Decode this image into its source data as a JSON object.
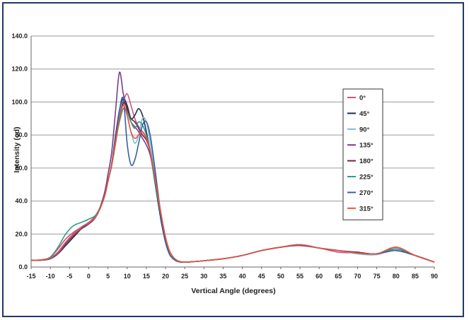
{
  "chart_data": {
    "type": "line",
    "title": "",
    "xlabel": "Vertical Angle (degrees)",
    "ylabel": "Intensity (cd)",
    "xlim": [
      -15,
      90
    ],
    "ylim": [
      0,
      140
    ],
    "x_ticks": [
      "-15",
      "-10",
      "-5",
      "0",
      "5",
      "10",
      "15",
      "20",
      "25",
      "30",
      "35",
      "40",
      "45",
      "50",
      "55",
      "60",
      "65",
      "70",
      "75",
      "80",
      "85",
      "90"
    ],
    "y_ticks": [
      "0.0",
      "20.0",
      "40.0",
      "60.0",
      "80.0",
      "100.0",
      "120.0",
      "140.0"
    ],
    "grid": "horizontal",
    "legend_position": "right",
    "x": [
      -15,
      -12,
      -10,
      -8,
      -6,
      -4,
      -2,
      0,
      2,
      4,
      5,
      6,
      7,
      8,
      9,
      10,
      11,
      12,
      13,
      14,
      15,
      16,
      17,
      18,
      19,
      20,
      21,
      22,
      23,
      24,
      25,
      27,
      30,
      35,
      40,
      45,
      50,
      55,
      60,
      65,
      70,
      75,
      80,
      85,
      90
    ],
    "series": [
      {
        "name": "0°",
        "color": "#d0537f",
        "values": [
          4,
          4.5,
          6,
          11,
          17,
          21,
          24,
          27,
          32,
          42,
          52,
          62,
          75,
          90,
          100,
          105,
          98,
          90,
          85,
          82,
          78,
          70,
          58,
          44,
          30,
          18,
          10,
          6,
          4,
          3.2,
          3,
          3.2,
          3.8,
          5,
          7,
          10,
          12,
          13.5,
          11.5,
          9,
          8.5,
          8,
          11,
          7,
          3
        ]
      },
      {
        "name": "45°",
        "color": "#1a2f45",
        "values": [
          4,
          4.2,
          5,
          8,
          13,
          18,
          23,
          27,
          31,
          42,
          52,
          63,
          80,
          95,
          102,
          98,
          90,
          92,
          96,
          92,
          82,
          70,
          55,
          40,
          26,
          15,
          8,
          5,
          3.5,
          3,
          3,
          3.2,
          3.8,
          5,
          7,
          10,
          12,
          13.5,
          11.5,
          10,
          8.5,
          8,
          10,
          7,
          3
        ]
      },
      {
        "name": "90°",
        "color": "#79bfd8",
        "values": [
          4,
          4.3,
          5.5,
          9,
          15,
          20,
          24,
          27,
          31,
          42,
          52,
          62,
          78,
          92,
          98,
          92,
          82,
          75,
          80,
          90,
          88,
          76,
          60,
          44,
          28,
          16,
          8,
          5,
          3.5,
          3,
          3,
          3.2,
          3.8,
          5,
          7,
          10,
          12,
          13.5,
          11.5,
          10,
          8,
          7.5,
          11,
          7,
          3
        ]
      },
      {
        "name": "135°",
        "color": "#7a3c8c",
        "values": [
          4,
          4.2,
          5,
          8,
          14,
          19,
          23,
          26,
          31,
          44,
          56,
          70,
          95,
          118,
          105,
          95,
          88,
          85,
          82,
          78,
          74,
          68,
          56,
          42,
          28,
          16,
          8,
          5,
          3.5,
          3,
          3,
          3.2,
          3.8,
          5,
          7,
          10,
          12,
          13,
          11.5,
          10,
          8.5,
          8,
          11,
          7,
          3
        ]
      },
      {
        "name": "180°",
        "color": "#7a1f3a",
        "values": [
          4,
          4.3,
          5.5,
          9,
          15,
          20,
          24,
          27,
          31,
          42,
          52,
          62,
          76,
          90,
          100,
          96,
          90,
          88,
          84,
          80,
          77,
          70,
          57,
          43,
          28,
          16,
          8,
          5,
          3.5,
          3,
          3,
          3.2,
          3.8,
          5,
          7,
          10,
          12,
          13.5,
          11.5,
          10,
          9,
          8,
          12,
          7,
          3
        ]
      },
      {
        "name": "225°",
        "color": "#2f9a8e",
        "values": [
          4,
          4.5,
          6,
          12,
          20,
          25,
          27,
          29,
          32,
          42,
          52,
          62,
          76,
          88,
          96,
          94,
          88,
          84,
          88,
          86,
          80,
          70,
          56,
          42,
          28,
          16,
          8,
          5,
          3.5,
          3,
          3,
          3.2,
          3.8,
          5,
          7,
          10,
          12,
          13.5,
          11.5,
          10,
          8.5,
          8,
          11,
          7,
          3
        ]
      },
      {
        "name": "270°",
        "color": "#3a5fa0",
        "values": [
          4,
          4.2,
          5,
          9,
          15,
          20,
          24,
          27,
          31,
          42,
          52,
          62,
          78,
          95,
          102,
          75,
          62,
          65,
          75,
          86,
          88,
          80,
          64,
          46,
          28,
          15,
          8,
          5,
          3.5,
          3,
          3,
          3.2,
          3.8,
          5,
          7,
          10,
          12,
          13.5,
          11.5,
          10,
          8.5,
          8,
          10,
          7,
          3
        ]
      },
      {
        "name": "315°",
        "color": "#e8543c",
        "values": [
          4,
          4.3,
          5.5,
          9,
          15,
          20,
          24,
          27,
          31,
          42,
          52,
          62,
          76,
          90,
          98,
          92,
          82,
          78,
          80,
          82,
          78,
          70,
          58,
          44,
          30,
          18,
          10,
          6,
          4,
          3.2,
          3,
          3.2,
          3.8,
          5,
          7,
          10,
          12,
          13.5,
          11.5,
          10,
          8.5,
          8,
          12,
          7,
          3
        ]
      }
    ]
  }
}
